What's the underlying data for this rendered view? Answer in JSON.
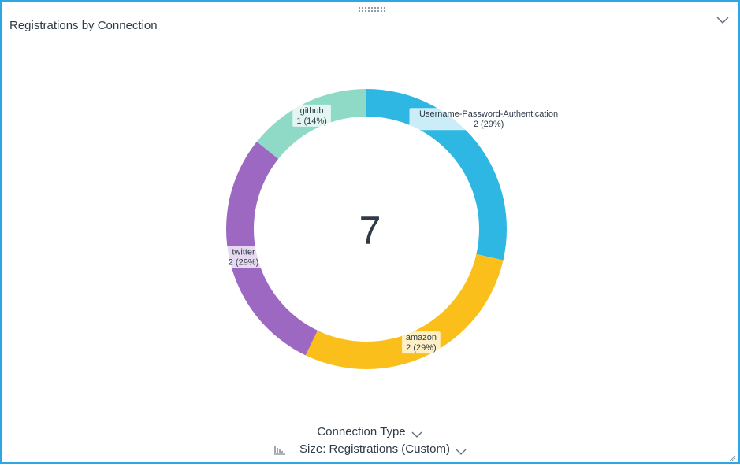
{
  "panel": {
    "title": "Registrations by Connection"
  },
  "controls": {
    "dimension_label": "Connection Type",
    "size_label": "Size: Registrations (Custom)"
  },
  "icons": {
    "drag": "drag-handle-icon",
    "collapse": "chevron-down-icon",
    "size": "bar-sort-icon",
    "resize": "resize-grip-icon"
  },
  "colors": {
    "border": "#2ea6e2"
  },
  "chart_data": {
    "type": "pie",
    "donut": true,
    "center_label": "7",
    "slices": [
      {
        "label": "Username-Password-Authentication",
        "value": 2,
        "display": "2 (29%)",
        "color": "#2fb7e4"
      },
      {
        "label": "amazon",
        "value": 2,
        "display": "2 (29%)",
        "color": "#fbbf1b"
      },
      {
        "label": "twitter",
        "value": 2,
        "display": "2 (29%)",
        "color": "#9c68c2"
      },
      {
        "label": "github",
        "value": 1,
        "display": "1 (14%)",
        "color": "#8fdac6"
      }
    ]
  }
}
